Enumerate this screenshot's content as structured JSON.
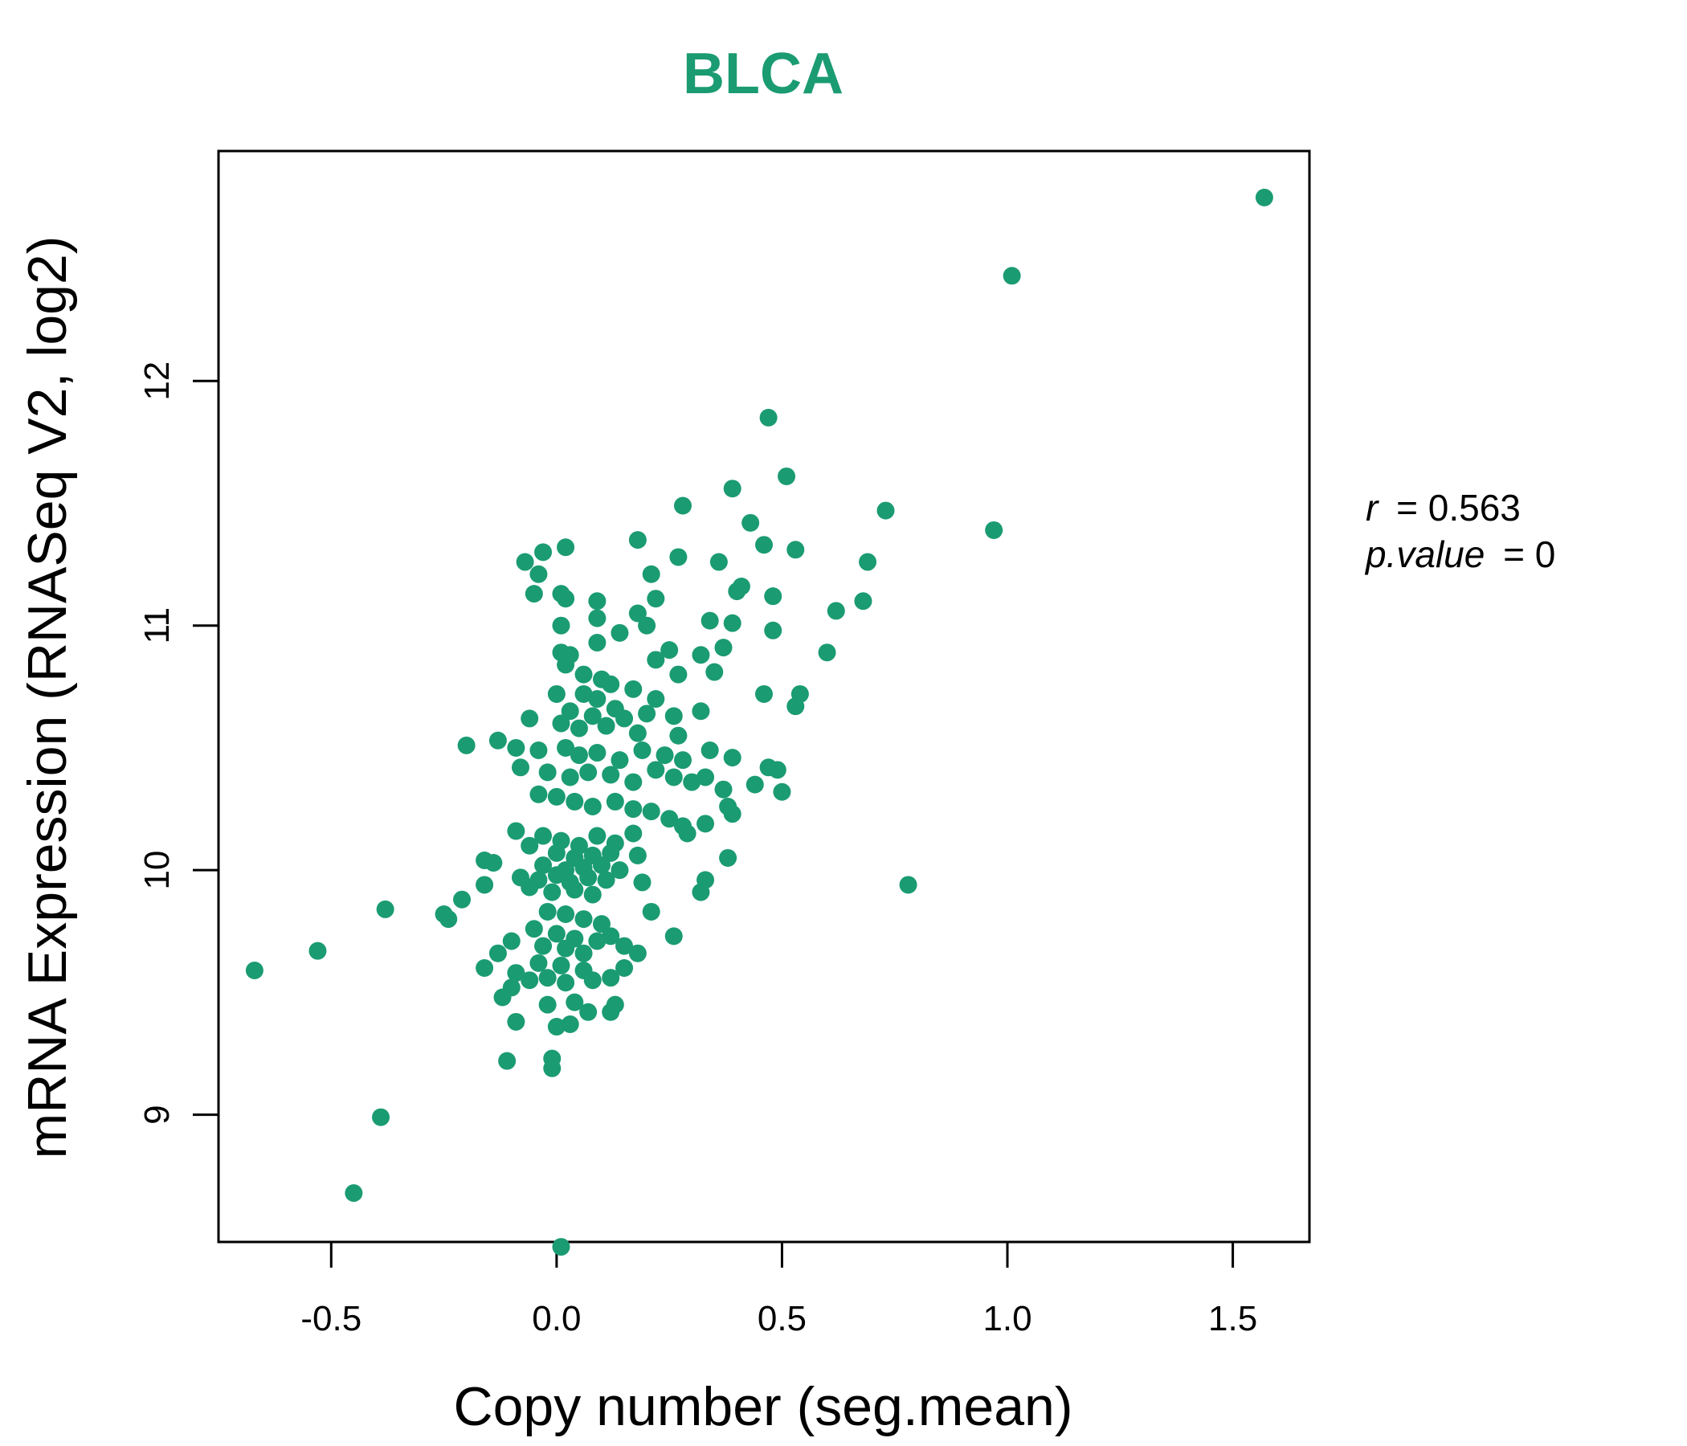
{
  "chart_data": {
    "type": "scatter",
    "title": "BLCA",
    "xlabel": "Copy number (seg.mean)",
    "ylabel": "mRNA Expression (RNASeq V2, log2)",
    "x_ticks": [
      "-0.5",
      "0.0",
      "0.5",
      "1.0",
      "1.5"
    ],
    "y_ticks": [
      "9",
      "10",
      "11",
      "12"
    ],
    "xlim": [
      -0.75,
      1.67
    ],
    "ylim": [
      8.48,
      12.94
    ],
    "color": "#1b9b72",
    "stats": {
      "r_label": "r",
      "r_value": "= 0.563",
      "p_label": "p.value",
      "p_value": "= 0"
    },
    "points": [
      [
        1.57,
        12.75
      ],
      [
        1.01,
        12.43
      ],
      [
        0.47,
        11.85
      ],
      [
        0.51,
        11.61
      ],
      [
        0.39,
        11.56
      ],
      [
        0.28,
        11.49
      ],
      [
        0.73,
        11.47
      ],
      [
        0.97,
        11.39
      ],
      [
        0.43,
        11.42
      ],
      [
        0.18,
        11.35
      ],
      [
        0.46,
        11.33
      ],
      [
        0.53,
        11.31
      ],
      [
        0.02,
        11.32
      ],
      [
        -0.03,
        11.3
      ],
      [
        -0.07,
        11.26
      ],
      [
        0.27,
        11.28
      ],
      [
        0.36,
        11.26
      ],
      [
        0.69,
        11.26
      ],
      [
        -0.04,
        11.21
      ],
      [
        0.21,
        11.21
      ],
      [
        0.4,
        11.14
      ],
      [
        0.41,
        11.16
      ],
      [
        0.48,
        11.12
      ],
      [
        0.68,
        11.1
      ],
      [
        -0.05,
        11.13
      ],
      [
        0.01,
        11.13
      ],
      [
        0.02,
        11.11
      ],
      [
        0.09,
        11.1
      ],
      [
        0.22,
        11.11
      ],
      [
        0.62,
        11.06
      ],
      [
        0.18,
        11.05
      ],
      [
        0.2,
        11.0
      ],
      [
        0.34,
        11.02
      ],
      [
        0.39,
        11.01
      ],
      [
        0.48,
        10.98
      ],
      [
        0.09,
        11.03
      ],
      [
        0.01,
        11.0
      ],
      [
        0.14,
        10.97
      ],
      [
        0.25,
        10.9
      ],
      [
        0.32,
        10.88
      ],
      [
        0.37,
        10.91
      ],
      [
        0.6,
        10.89
      ],
      [
        0.01,
        10.89
      ],
      [
        0.03,
        10.88
      ],
      [
        0.09,
        10.93
      ],
      [
        0.22,
        10.86
      ],
      [
        0.35,
        10.81
      ],
      [
        0.02,
        10.84
      ],
      [
        0.06,
        10.8
      ],
      [
        0.1,
        10.78
      ],
      [
        0.12,
        10.76
      ],
      [
        0.27,
        10.8
      ],
      [
        0.46,
        10.72
      ],
      [
        0.54,
        10.72
      ],
      [
        0.0,
        10.72
      ],
      [
        0.06,
        10.72
      ],
      [
        0.09,
        10.7
      ],
      [
        0.17,
        10.74
      ],
      [
        0.22,
        10.7
      ],
      [
        0.53,
        10.67
      ],
      [
        0.03,
        10.65
      ],
      [
        0.08,
        10.63
      ],
      [
        0.13,
        10.66
      ],
      [
        0.15,
        10.62
      ],
      [
        0.2,
        10.64
      ],
      [
        0.26,
        10.63
      ],
      [
        0.32,
        10.65
      ],
      [
        -0.06,
        10.62
      ],
      [
        0.01,
        10.6
      ],
      [
        0.05,
        10.58
      ],
      [
        0.11,
        10.59
      ],
      [
        0.18,
        10.56
      ],
      [
        0.27,
        10.55
      ],
      [
        -0.2,
        10.51
      ],
      [
        -0.13,
        10.53
      ],
      [
        -0.09,
        10.5
      ],
      [
        -0.04,
        10.49
      ],
      [
        0.02,
        10.5
      ],
      [
        0.05,
        10.47
      ],
      [
        0.09,
        10.48
      ],
      [
        0.14,
        10.45
      ],
      [
        0.19,
        10.49
      ],
      [
        0.24,
        10.47
      ],
      [
        0.28,
        10.45
      ],
      [
        0.34,
        10.49
      ],
      [
        0.39,
        10.46
      ],
      [
        0.47,
        10.42
      ],
      [
        0.49,
        10.41
      ],
      [
        -0.08,
        10.42
      ],
      [
        -0.02,
        10.4
      ],
      [
        0.03,
        10.38
      ],
      [
        0.07,
        10.4
      ],
      [
        0.12,
        10.39
      ],
      [
        0.17,
        10.36
      ],
      [
        0.22,
        10.41
      ],
      [
        0.26,
        10.38
      ],
      [
        0.3,
        10.36
      ],
      [
        0.33,
        10.38
      ],
      [
        0.37,
        10.33
      ],
      [
        0.44,
        10.35
      ],
      [
        0.5,
        10.32
      ],
      [
        -0.04,
        10.31
      ],
      [
        0.0,
        10.3
      ],
      [
        0.04,
        10.28
      ],
      [
        0.08,
        10.26
      ],
      [
        0.13,
        10.28
      ],
      [
        0.17,
        10.25
      ],
      [
        0.21,
        10.24
      ],
      [
        0.25,
        10.21
      ],
      [
        0.28,
        10.18
      ],
      [
        0.33,
        10.19
      ],
      [
        0.38,
        10.26
      ],
      [
        0.39,
        10.23
      ],
      [
        -0.09,
        10.16
      ],
      [
        -0.03,
        10.14
      ],
      [
        0.01,
        10.12
      ],
      [
        0.05,
        10.1
      ],
      [
        0.09,
        10.14
      ],
      [
        0.13,
        10.11
      ],
      [
        0.17,
        10.15
      ],
      [
        0.29,
        10.15
      ],
      [
        -0.06,
        10.1
      ],
      [
        0.0,
        10.07
      ],
      [
        0.04,
        10.05
      ],
      [
        0.08,
        10.06
      ],
      [
        0.12,
        10.07
      ],
      [
        0.18,
        10.06
      ],
      [
        -0.16,
        10.04
      ],
      [
        -0.14,
        10.03
      ],
      [
        -0.03,
        10.02
      ],
      [
        0.02,
        10.0
      ],
      [
        0.06,
        10.01
      ],
      [
        0.1,
        10.02
      ],
      [
        0.14,
        10.0
      ],
      [
        0.38,
        10.05
      ],
      [
        -0.08,
        9.97
      ],
      [
        -0.04,
        9.96
      ],
      [
        0.0,
        9.98
      ],
      [
        0.03,
        9.95
      ],
      [
        0.07,
        9.97
      ],
      [
        0.11,
        9.96
      ],
      [
        0.19,
        9.95
      ],
      [
        0.33,
        9.96
      ],
      [
        -0.16,
        9.94
      ],
      [
        -0.06,
        9.93
      ],
      [
        -0.01,
        9.91
      ],
      [
        0.04,
        9.92
      ],
      [
        0.08,
        9.9
      ],
      [
        0.32,
        9.91
      ],
      [
        0.78,
        9.94
      ],
      [
        -0.21,
        9.88
      ],
      [
        -0.38,
        9.84
      ],
      [
        -0.25,
        9.82
      ],
      [
        -0.24,
        9.8
      ],
      [
        -0.02,
        9.83
      ],
      [
        0.02,
        9.82
      ],
      [
        0.06,
        9.8
      ],
      [
        0.1,
        9.78
      ],
      [
        0.21,
        9.83
      ],
      [
        -0.05,
        9.76
      ],
      [
        0.0,
        9.74
      ],
      [
        0.04,
        9.72
      ],
      [
        0.09,
        9.71
      ],
      [
        0.12,
        9.73
      ],
      [
        0.26,
        9.73
      ],
      [
        -0.1,
        9.71
      ],
      [
        -0.03,
        9.69
      ],
      [
        0.02,
        9.68
      ],
      [
        0.06,
        9.66
      ],
      [
        0.15,
        9.69
      ],
      [
        0.18,
        9.66
      ],
      [
        -0.13,
        9.66
      ],
      [
        -0.67,
        9.59
      ],
      [
        -0.53,
        9.67
      ],
      [
        -0.16,
        9.6
      ],
      [
        -0.09,
        9.58
      ],
      [
        -0.04,
        9.62
      ],
      [
        0.01,
        9.61
      ],
      [
        0.06,
        9.59
      ],
      [
        0.12,
        9.56
      ],
      [
        0.15,
        9.6
      ],
      [
        -0.1,
        9.52
      ],
      [
        -0.06,
        9.55
      ],
      [
        -0.02,
        9.56
      ],
      [
        0.02,
        9.54
      ],
      [
        0.08,
        9.55
      ],
      [
        -0.12,
        9.48
      ],
      [
        -0.02,
        9.45
      ],
      [
        0.04,
        9.46
      ],
      [
        0.07,
        9.42
      ],
      [
        0.12,
        9.42
      ],
      [
        0.13,
        9.45
      ],
      [
        -0.09,
        9.38
      ],
      [
        0.0,
        9.36
      ],
      [
        0.03,
        9.37
      ],
      [
        -0.11,
        9.22
      ],
      [
        -0.01,
        9.23
      ],
      [
        -0.01,
        9.19
      ],
      [
        -0.39,
        8.99
      ],
      [
        -0.45,
        8.68
      ],
      [
        0.01,
        8.46
      ]
    ]
  }
}
